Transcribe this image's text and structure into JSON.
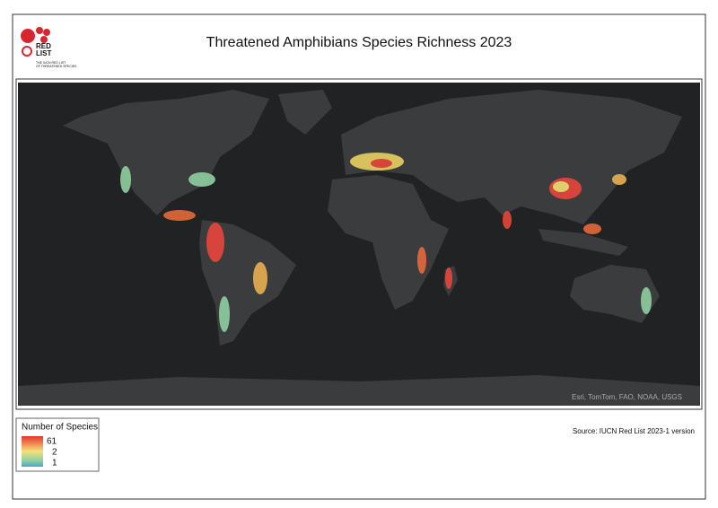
{
  "header": {
    "title": "Threatened Amphibians Species Richness 2023",
    "logo": {
      "mark": [
        "RED",
        "LIST"
      ],
      "tagline": [
        "THE IUCN RED LIST",
        "OF THREATENED SPECIES"
      ]
    }
  },
  "map": {
    "attribution": "Esri, TomTom, FAO, NOAA, USGS"
  },
  "legend": {
    "title": "Number of Species",
    "labels": [
      61,
      2,
      1
    ]
  },
  "source": "Source: IUCN Red List 2023-1 version"
}
